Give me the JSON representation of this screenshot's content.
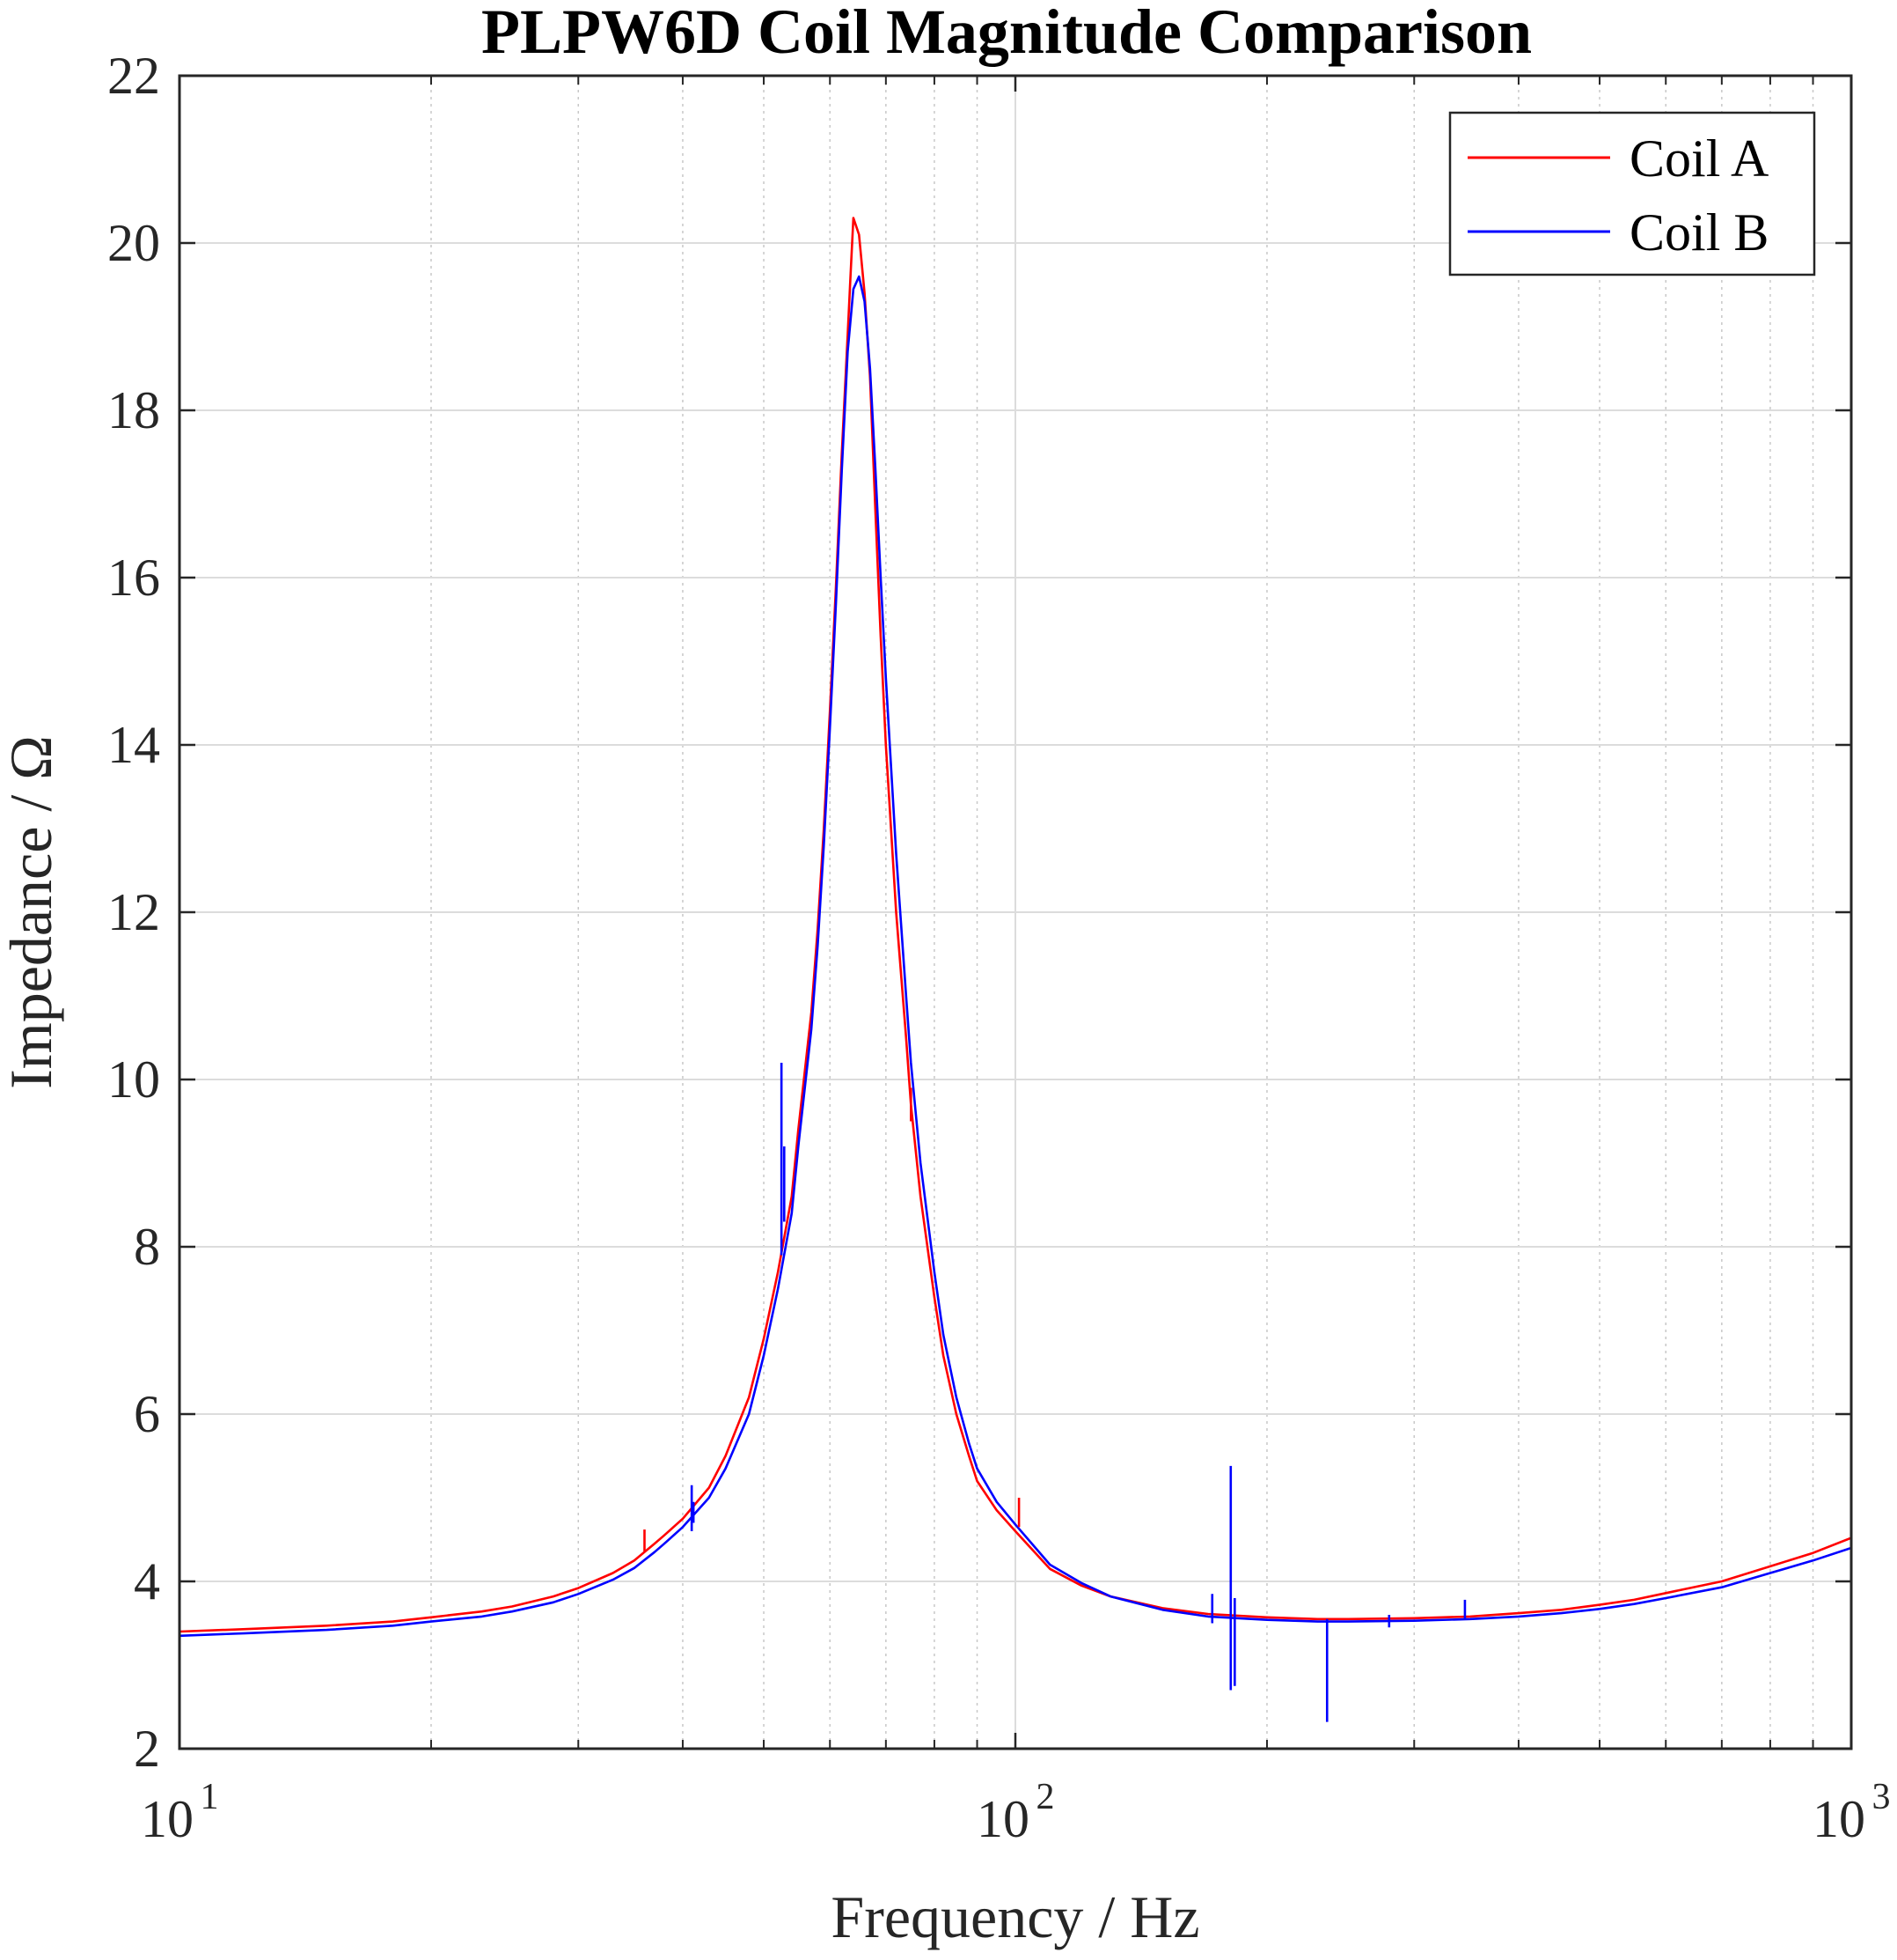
{
  "chart_data": {
    "type": "line",
    "title": "PLPW6D Coil Magnitude Comparison",
    "xlabel": "Frequency / Hz",
    "ylabel": "Impedance / Ω",
    "xscale": "log",
    "xlim": [
      10,
      1000
    ],
    "ylim": [
      2,
      22
    ],
    "grid": true,
    "legend_position": "top-right",
    "x_ticks": [
      {
        "value": 10,
        "base": "10",
        "exp": "1"
      },
      {
        "value": 100,
        "base": "10",
        "exp": "2"
      },
      {
        "value": 1000,
        "base": "10",
        "exp": "3"
      }
    ],
    "y_ticks": [
      "2",
      "4",
      "6",
      "8",
      "10",
      "12",
      "14",
      "16",
      "18",
      "20",
      "22"
    ],
    "series": [
      {
        "name": "Coil A",
        "color": "#ff0000",
        "x": [
          10,
          12,
          15,
          18,
          20,
          23,
          25,
          28,
          30,
          33,
          35,
          37,
          38,
          40,
          43,
          45,
          48,
          50,
          52,
          54,
          55,
          57,
          58,
          59,
          60,
          61,
          62,
          63,
          63.5,
          64,
          65,
          66,
          67,
          68,
          69,
          70,
          72,
          74,
          75,
          77,
          80,
          82,
          85,
          88,
          90,
          95,
          100,
          110,
          120,
          130,
          150,
          170,
          200,
          230,
          250,
          300,
          350,
          400,
          450,
          500,
          550,
          600,
          700,
          800,
          900,
          1000
        ],
        "y": [
          3.4,
          3.43,
          3.47,
          3.52,
          3.57,
          3.64,
          3.7,
          3.82,
          3.92,
          4.1,
          4.25,
          4.45,
          4.55,
          4.75,
          5.12,
          5.5,
          6.2,
          6.9,
          7.7,
          8.6,
          9.4,
          10.8,
          11.8,
          13.0,
          14.4,
          15.9,
          17.5,
          18.9,
          19.6,
          20.3,
          20.1,
          19.4,
          18.4,
          16.8,
          15.3,
          14.0,
          12.0,
          10.5,
          9.7,
          8.6,
          7.4,
          6.7,
          6.0,
          5.5,
          5.2,
          4.85,
          4.6,
          4.15,
          3.95,
          3.82,
          3.68,
          3.61,
          3.57,
          3.55,
          3.55,
          3.56,
          3.58,
          3.62,
          3.66,
          3.72,
          3.78,
          3.86,
          4.0,
          4.18,
          4.34,
          4.52
        ]
      },
      {
        "name": "Coil B",
        "color": "#0000ff",
        "x": [
          10,
          12,
          15,
          18,
          20,
          23,
          25,
          28,
          30,
          33,
          35,
          37,
          38,
          40,
          43,
          45,
          48,
          50,
          52,
          54,
          55,
          57,
          58,
          59,
          60,
          61,
          62,
          63,
          64,
          65,
          66,
          67,
          68,
          69,
          70,
          72,
          74,
          75,
          77,
          80,
          82,
          85,
          88,
          90,
          95,
          100,
          110,
          120,
          130,
          150,
          170,
          200,
          230,
          250,
          300,
          350,
          400,
          450,
          500,
          550,
          600,
          700,
          800,
          900,
          1000
        ],
        "y": [
          3.35,
          3.38,
          3.42,
          3.47,
          3.52,
          3.58,
          3.64,
          3.75,
          3.85,
          4.02,
          4.16,
          4.35,
          4.45,
          4.65,
          5.0,
          5.35,
          6.0,
          6.7,
          7.5,
          8.4,
          9.2,
          10.6,
          11.6,
          12.8,
          14.2,
          15.7,
          17.3,
          18.7,
          19.45,
          19.6,
          19.3,
          18.5,
          17.3,
          16.0,
          14.8,
          12.7,
          11.0,
          10.2,
          9.0,
          7.7,
          6.95,
          6.2,
          5.65,
          5.35,
          4.95,
          4.68,
          4.2,
          3.98,
          3.82,
          3.66,
          3.58,
          3.54,
          3.52,
          3.52,
          3.53,
          3.55,
          3.58,
          3.62,
          3.67,
          3.73,
          3.8,
          3.93,
          4.1,
          4.25,
          4.4
        ]
      }
    ],
    "spikes": [
      {
        "series": "Coil A",
        "x": 36,
        "y_from": 4.35,
        "y_to": 4.62
      },
      {
        "series": "Coil A",
        "x": 101,
        "y_from": 4.65,
        "y_to": 5.0
      },
      {
        "series": "Coil A",
        "x": 75,
        "y_from": 9.5,
        "y_to": 9.9
      },
      {
        "series": "Coil B",
        "x": 41,
        "y_from": 4.6,
        "y_to": 5.15
      },
      {
        "series": "Coil B",
        "x": 41.2,
        "y_from": 4.7,
        "y_to": 4.95
      },
      {
        "series": "Coil B",
        "x": 52.5,
        "y_from": 7.9,
        "y_to": 10.2
      },
      {
        "series": "Coil B",
        "x": 52.9,
        "y_from": 8.3,
        "y_to": 9.2
      },
      {
        "series": "Coil B",
        "x": 172,
        "y_from": 3.5,
        "y_to": 3.85
      },
      {
        "series": "Coil B",
        "x": 181,
        "y_from": 2.7,
        "y_to": 5.38
      },
      {
        "series": "Coil B",
        "x": 183,
        "y_from": 2.75,
        "y_to": 3.8
      },
      {
        "series": "Coil B",
        "x": 236,
        "y_from": 2.32,
        "y_to": 3.55
      },
      {
        "series": "Coil B",
        "x": 280,
        "y_from": 3.45,
        "y_to": 3.6
      },
      {
        "series": "Coil B",
        "x": 345,
        "y_from": 3.55,
        "y_to": 3.78
      }
    ]
  }
}
